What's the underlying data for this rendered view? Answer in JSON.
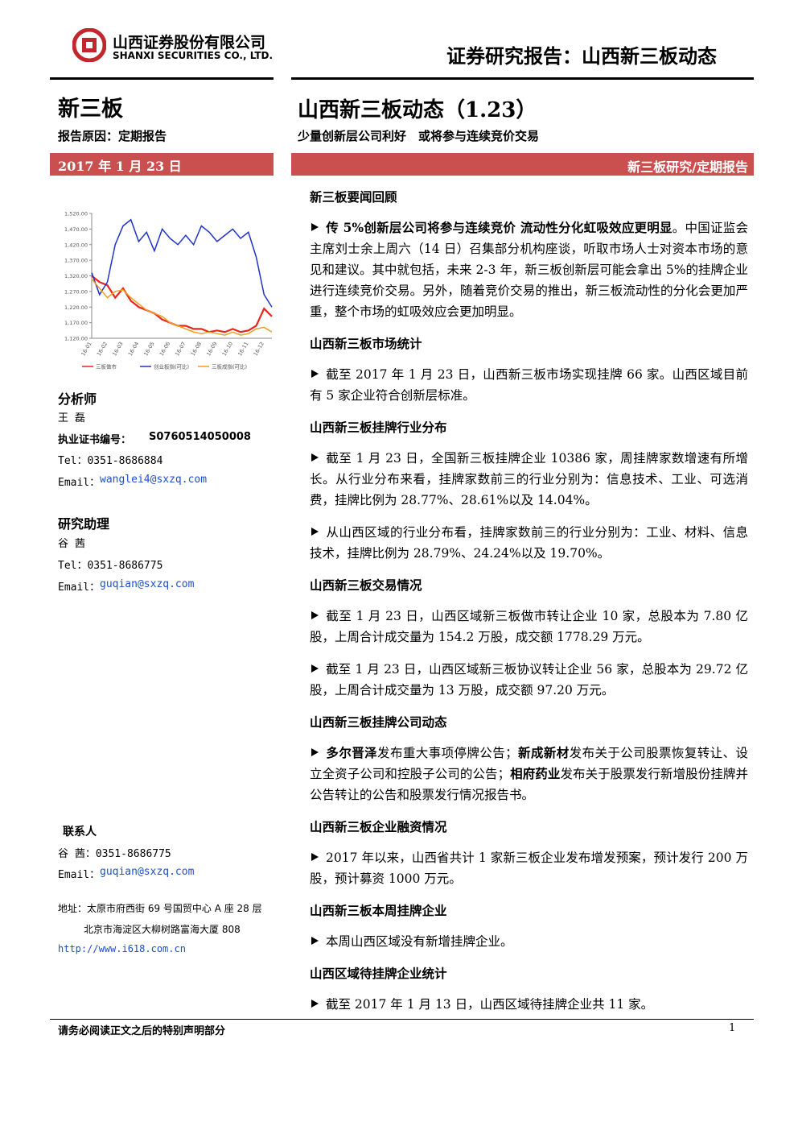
{
  "header": {
    "company_cn": "山西证券股份有限公司",
    "company_en": "SHANXI SECURITIES CO., LTD.",
    "report_type": "证券研究报告：山西新三板动态"
  },
  "sidebar": {
    "board": "新三板",
    "reason": "报告原因：定期报告",
    "date": "2017 年 1 月 23 日",
    "analyst": {
      "heading": "分析师",
      "name": "王 磊",
      "cert_label": "执业证书编号：",
      "cert": "S0760514050008",
      "tel": "Tel：0351-8686884",
      "email_label": "Email：",
      "email": "wanglei4@sxzq.com"
    },
    "assistant": {
      "heading": "研究助理",
      "name": "谷 茜",
      "tel": "Tel：0351-8686775",
      "email_label": "Email：",
      "email": "guqian@sxzq.com"
    },
    "contact": {
      "heading": "联系人",
      "tel": "谷 茜：0351-8686775",
      "email_label": "Email：",
      "email": "guqian@sxzq.com"
    },
    "address": {
      "line1": "地址：太原市府西街 69 号国贸中心 A 座 28 层",
      "line2": "北京市海淀区大柳树路富海大厦 808",
      "url": "http://www.i618.com.cn"
    }
  },
  "main": {
    "title": "山西新三板动态（1.23）",
    "subtitle": "少量创新层公司利好　或将参与连续竞价交易",
    "category": "新三板研究/定期报告",
    "sections": [
      {
        "heading": "新三板要闻回顾",
        "paragraphs": [
          [
            {
              "text": "传 5%创新层公司将参与连续竞价 流动性分化虹吸效应更明显",
              "bold": true
            },
            {
              "text": "。中国证监会主席刘士余上周六（14 日）召集部分机构座谈，听取市场人士对资本市场的意见和建议。其中就包括，未来 2-3 年，新三板创新层可能会拿出 5%的挂牌企业进行连续竞价交易。另外，随着竞价交易的推出，新三板流动性的分化会更加严重，整个市场的虹吸效应会更加明显。",
              "bold": false
            }
          ]
        ]
      },
      {
        "heading": "山西新三板市场统计",
        "paragraphs": [
          [
            {
              "text": "截至 2017 年 1 月 23 日，山西新三板市场实现挂牌 66 家。山西区域目前有 5 家企业符合创新层标准。",
              "bold": false
            }
          ]
        ]
      },
      {
        "heading": "山西新三板挂牌行业分布",
        "paragraphs": [
          [
            {
              "text": "截至 1 月 23 日，全国新三板挂牌企业 10386 家，周挂牌家数增速有所增长。从行业分布来看，挂牌家数前三的行业分别为：信息技术、工业、可选消费，挂牌比例为 28.77%、28.61%以及 14.04%。",
              "bold": false
            }
          ],
          [
            {
              "text": "从山西区域的行业分布看，挂牌家数前三的行业分别为：工业、材料、信息技术，挂牌比例为 28.79%、24.24%以及 19.70%。",
              "bold": false
            }
          ]
        ]
      },
      {
        "heading": "山西新三板交易情况",
        "paragraphs": [
          [
            {
              "text": "截至 1 月 23 日，山西区域新三板做市转让企业 10 家，总股本为 7.80 亿股，上周合计成交量为 154.2 万股，成交额 1778.29 万元。",
              "bold": false
            }
          ],
          [
            {
              "text": "截至 1 月 23 日，山西区域新三板协议转让企业 56 家，总股本为 29.72 亿股，上周合计成交量为 13 万股，成交额 97.20 万元。",
              "bold": false
            }
          ]
        ]
      },
      {
        "heading": "山西新三板挂牌公司动态",
        "paragraphs": [
          [
            {
              "text": "多尔晋泽",
              "bold": true
            },
            {
              "text": "发布重大事项停牌公告；",
              "bold": false
            },
            {
              "text": "新成新材",
              "bold": true
            },
            {
              "text": "发布关于公司股票恢复转让、设立全资子公司和控股子公司的公告；",
              "bold": false
            },
            {
              "text": "相府药业",
              "bold": true
            },
            {
              "text": "发布关于股票发行新增股份挂牌并公告转让的公告和股票发行情况报告书。",
              "bold": false
            }
          ]
        ]
      },
      {
        "heading": "山西新三板企业融资情况",
        "paragraphs": [
          [
            {
              "text": "2017 年以来，山西省共计 1 家新三板企业发布增发预案，预计发行 200 万股，预计募资 1000 万元。",
              "bold": false
            }
          ]
        ]
      },
      {
        "heading": "山西新三板本周挂牌企业",
        "paragraphs": [
          [
            {
              "text": "本周山西区域没有新增挂牌企业。",
              "bold": false
            }
          ]
        ]
      },
      {
        "heading": "山西区域待挂牌企业统计",
        "paragraphs": [
          [
            {
              "text": "截至 2017 年 1 月 13 日，山西区域待挂牌企业共 11 家。",
              "bold": false
            }
          ]
        ]
      }
    ]
  },
  "chart_data": {
    "type": "line",
    "categories": [
      "16-01",
      null,
      "16-02",
      null,
      "16-03",
      null,
      "16-04",
      null,
      "16-05",
      null,
      "16-06",
      null,
      "16-07",
      null,
      "16-08",
      null,
      "16-09",
      null,
      "16-10",
      null,
      "16-11",
      null,
      "16-12",
      null
    ],
    "series": [
      {
        "name": "三板做市",
        "color": "#e8261c",
        "values": [
          1320,
          1300,
          1290,
          1250,
          1280,
          1240,
          1220,
          1210,
          1200,
          1180,
          1170,
          1160,
          1160,
          1150,
          1150,
          1140,
          1145,
          1140,
          1150,
          1140,
          1145,
          1160,
          1215,
          1190
        ]
      },
      {
        "name": "创业板指(可比)",
        "color": "#1f33c8",
        "values": [
          1330,
          1260,
          1300,
          1420,
          1480,
          1500,
          1430,
          1460,
          1400,
          1470,
          1440,
          1420,
          1450,
          1420,
          1480,
          1460,
          1430,
          1450,
          1470,
          1440,
          1460,
          1380,
          1260,
          1220
        ]
      },
      {
        "name": "三板成指(可比)",
        "color": "#f0a020",
        "values": [
          1310,
          1280,
          1250,
          1270,
          1275,
          1250,
          1230,
          1210,
          1200,
          1190,
          1170,
          1160,
          1150,
          1140,
          1135,
          1140,
          1135,
          1130,
          1140,
          1130,
          1135,
          1150,
          1155,
          1140
        ]
      }
    ],
    "ylim": [
      1120,
      1520
    ],
    "yticks": [
      {
        "value": 1120,
        "label": "1,120.00"
      },
      {
        "value": 1170,
        "label": "1,170.00"
      },
      {
        "value": 1220,
        "label": "1,220.00"
      },
      {
        "value": 1270,
        "label": "1,270.00"
      },
      {
        "value": 1320,
        "label": "1,320.00"
      },
      {
        "value": 1370,
        "label": "1,370.00"
      },
      {
        "value": 1420,
        "label": "1,420.00"
      },
      {
        "value": 1470,
        "label": "1,470.00"
      },
      {
        "value": 1520,
        "label": "1,520.00"
      }
    ]
  },
  "footer": {
    "disclaimer": "请务必阅读正文之后的特别声明部分",
    "page": 1
  }
}
